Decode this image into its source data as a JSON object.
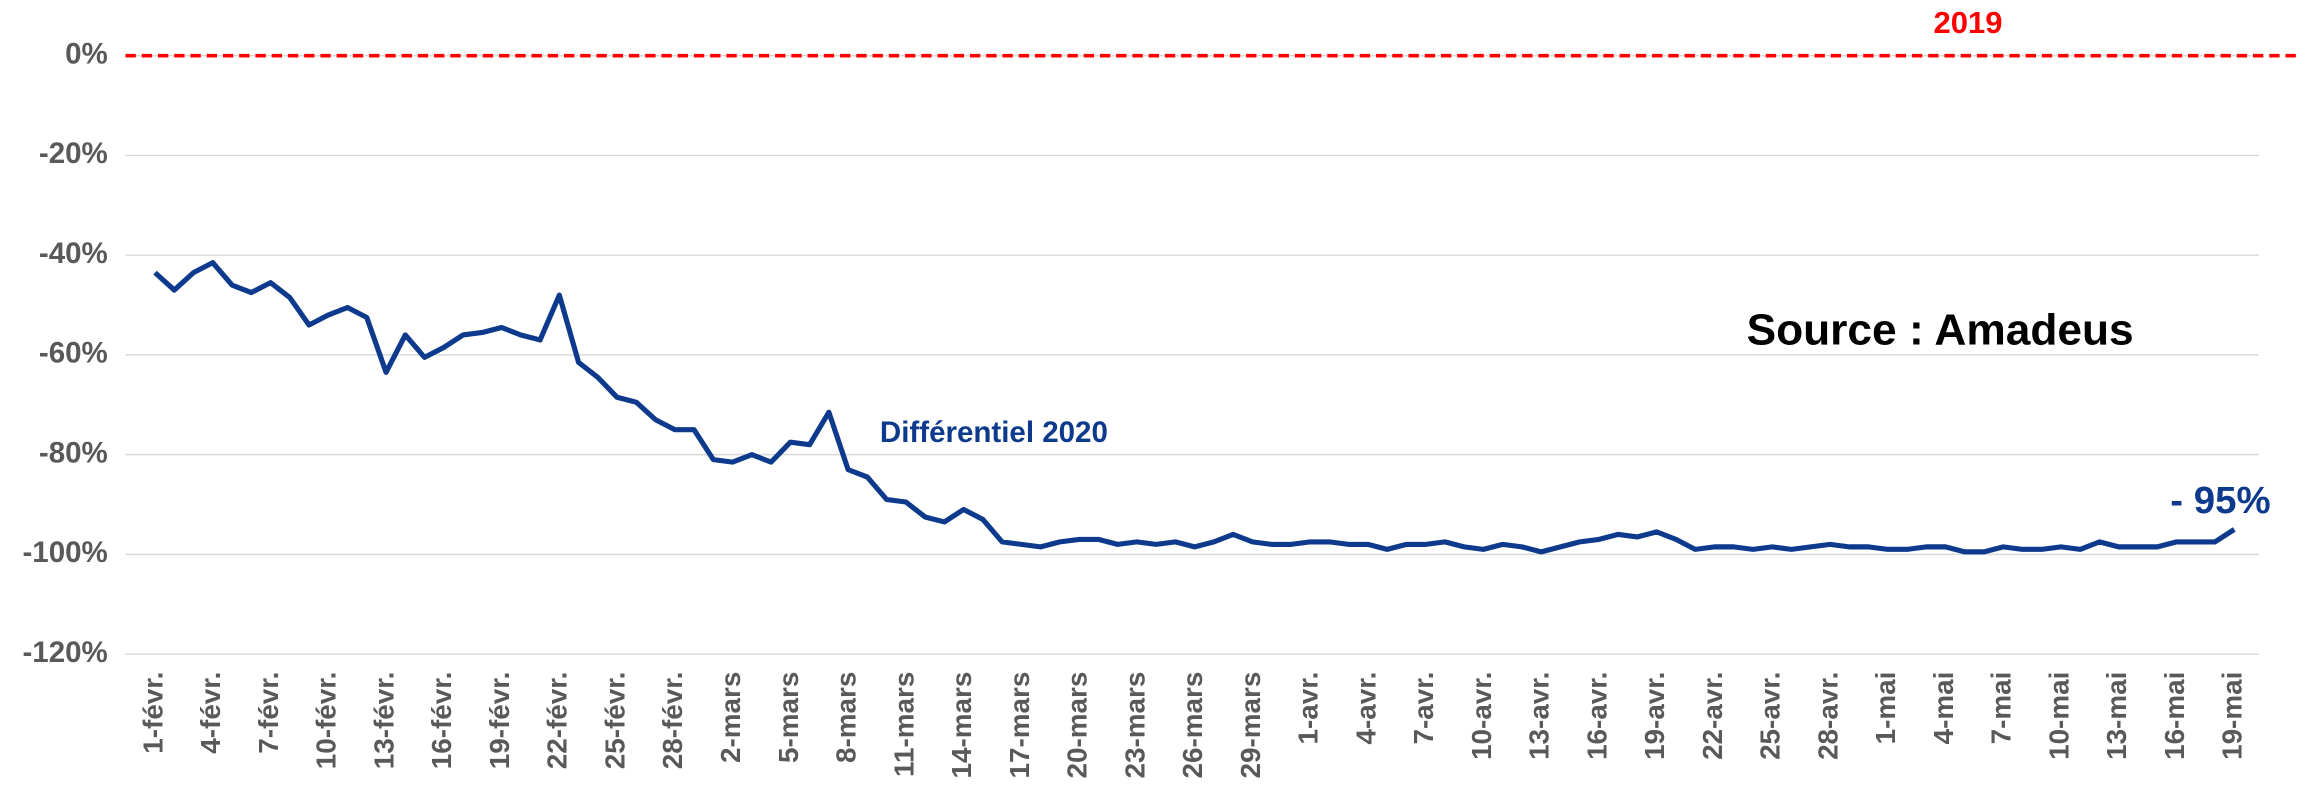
{
  "chart_data": {
    "type": "line",
    "categories": [
      "1-févr.",
      null,
      null,
      "4-févr.",
      null,
      null,
      "7-févr.",
      null,
      null,
      "10-févr.",
      null,
      null,
      "13-févr.",
      null,
      null,
      "16-févr.",
      null,
      null,
      "19-févr.",
      null,
      null,
      "22-févr.",
      null,
      null,
      "25-févr.",
      null,
      null,
      "28-févr.",
      null,
      null,
      "2-mars",
      null,
      null,
      "5-mars",
      null,
      null,
      "8-mars",
      null,
      null,
      "11-mars",
      null,
      null,
      "14-mars",
      null,
      null,
      "17-mars",
      null,
      null,
      "20-mars",
      null,
      null,
      "23-mars",
      null,
      null,
      "26-mars",
      null,
      null,
      "29-mars",
      null,
      null,
      "1-avr.",
      null,
      null,
      "4-avr.",
      null,
      null,
      "7-avr.",
      null,
      null,
      "10-avr.",
      null,
      null,
      "13-avr.",
      null,
      null,
      "16-avr.",
      null,
      null,
      "19-avr.",
      null,
      null,
      "22-avr.",
      null,
      null,
      "25-avr.",
      null,
      null,
      "28-avr.",
      null,
      null,
      "1-mai",
      null,
      null,
      "4-mai",
      null,
      null,
      "7-mai",
      null,
      null,
      "10-mai",
      null,
      null,
      "13-mai",
      null,
      null,
      "16-mai",
      null,
      null,
      "19-mai"
    ],
    "series": [
      {
        "name": "2019",
        "color": "#ff0000",
        "dashed": true,
        "values": [
          0,
          0,
          0,
          0,
          0,
          0,
          0,
          0,
          0,
          0,
          0,
          0,
          0,
          0,
          0,
          0,
          0,
          0,
          0,
          0,
          0,
          0,
          0,
          0,
          0,
          0,
          0,
          0,
          0,
          0,
          0,
          0,
          0,
          0,
          0,
          0,
          0,
          0,
          0,
          0,
          0,
          0,
          0,
          0,
          0,
          0,
          0,
          0,
          0,
          0,
          0,
          0,
          0,
          0,
          0,
          0,
          0,
          0,
          0,
          0,
          0,
          0,
          0,
          0,
          0,
          0,
          0,
          0,
          0,
          0,
          0,
          0,
          0,
          0,
          0,
          0,
          0,
          0,
          0,
          0,
          0,
          0,
          0,
          0,
          0,
          0,
          0,
          0,
          0,
          0,
          0,
          0,
          0,
          0,
          0,
          0,
          0,
          0,
          0,
          0,
          0,
          0,
          0,
          0,
          0,
          0,
          0,
          0,
          0
        ]
      },
      {
        "name": "Différentiel 2020",
        "color": "#0d3a8c",
        "values": [
          -43.5,
          -47,
          -43.5,
          -41.5,
          -46,
          -47.5,
          -45.5,
          -48.5,
          -54,
          -52,
          -50.5,
          -52.5,
          -63.5,
          -56,
          -60.5,
          -58.5,
          -56,
          -55.5,
          -54.5,
          -56,
          -57,
          -48,
          -61.5,
          -64.5,
          -68.5,
          -69.5,
          -73,
          -75,
          -75,
          -81,
          -81.5,
          -80,
          -81.5,
          -77.5,
          -78,
          -71.5,
          -83,
          -84.5,
          -89,
          -89.5,
          -92.5,
          -93.5,
          -91,
          -93,
          -97.5,
          -98,
          -98.5,
          -97.5,
          -97,
          -97,
          -98,
          -97.5,
          -98,
          -97.5,
          -98.5,
          -97.5,
          -96,
          -97.5,
          -98,
          -98,
          -97.5,
          -97.5,
          -98,
          -98,
          -99,
          -98,
          -98,
          -97.5,
          -98.5,
          -99,
          -98,
          -98.5,
          -99.5,
          -98.5,
          -97.5,
          -97,
          -96,
          -96.5,
          -95.5,
          -97,
          -99,
          -98.5,
          -98.5,
          -99,
          -98.5,
          -99,
          -98.5,
          -98,
          -98.5,
          -98.5,
          -99,
          -99,
          -98.5,
          -98.5,
          -99.5,
          -99.5,
          -98.5,
          -99,
          -99,
          -98.5,
          -99,
          -97.5,
          -98.5,
          -98.5,
          -98.5,
          -97.5,
          -97.5,
          -97.5,
          -95
        ]
      }
    ],
    "annotations": [
      "Source : Amadeus",
      "- 95%"
    ],
    "ylim": [
      -120,
      0
    ],
    "yticks": [
      {
        "value": 0,
        "label": "0%"
      },
      {
        "value": -20,
        "label": "-20%"
      },
      {
        "value": -40,
        "label": "-40%"
      },
      {
        "value": -60,
        "label": "-60%"
      },
      {
        "value": -80,
        "label": "-80%"
      },
      {
        "value": -100,
        "label": "-100%"
      },
      {
        "value": -120,
        "label": "-120%"
      }
    ],
    "grid": true
  }
}
